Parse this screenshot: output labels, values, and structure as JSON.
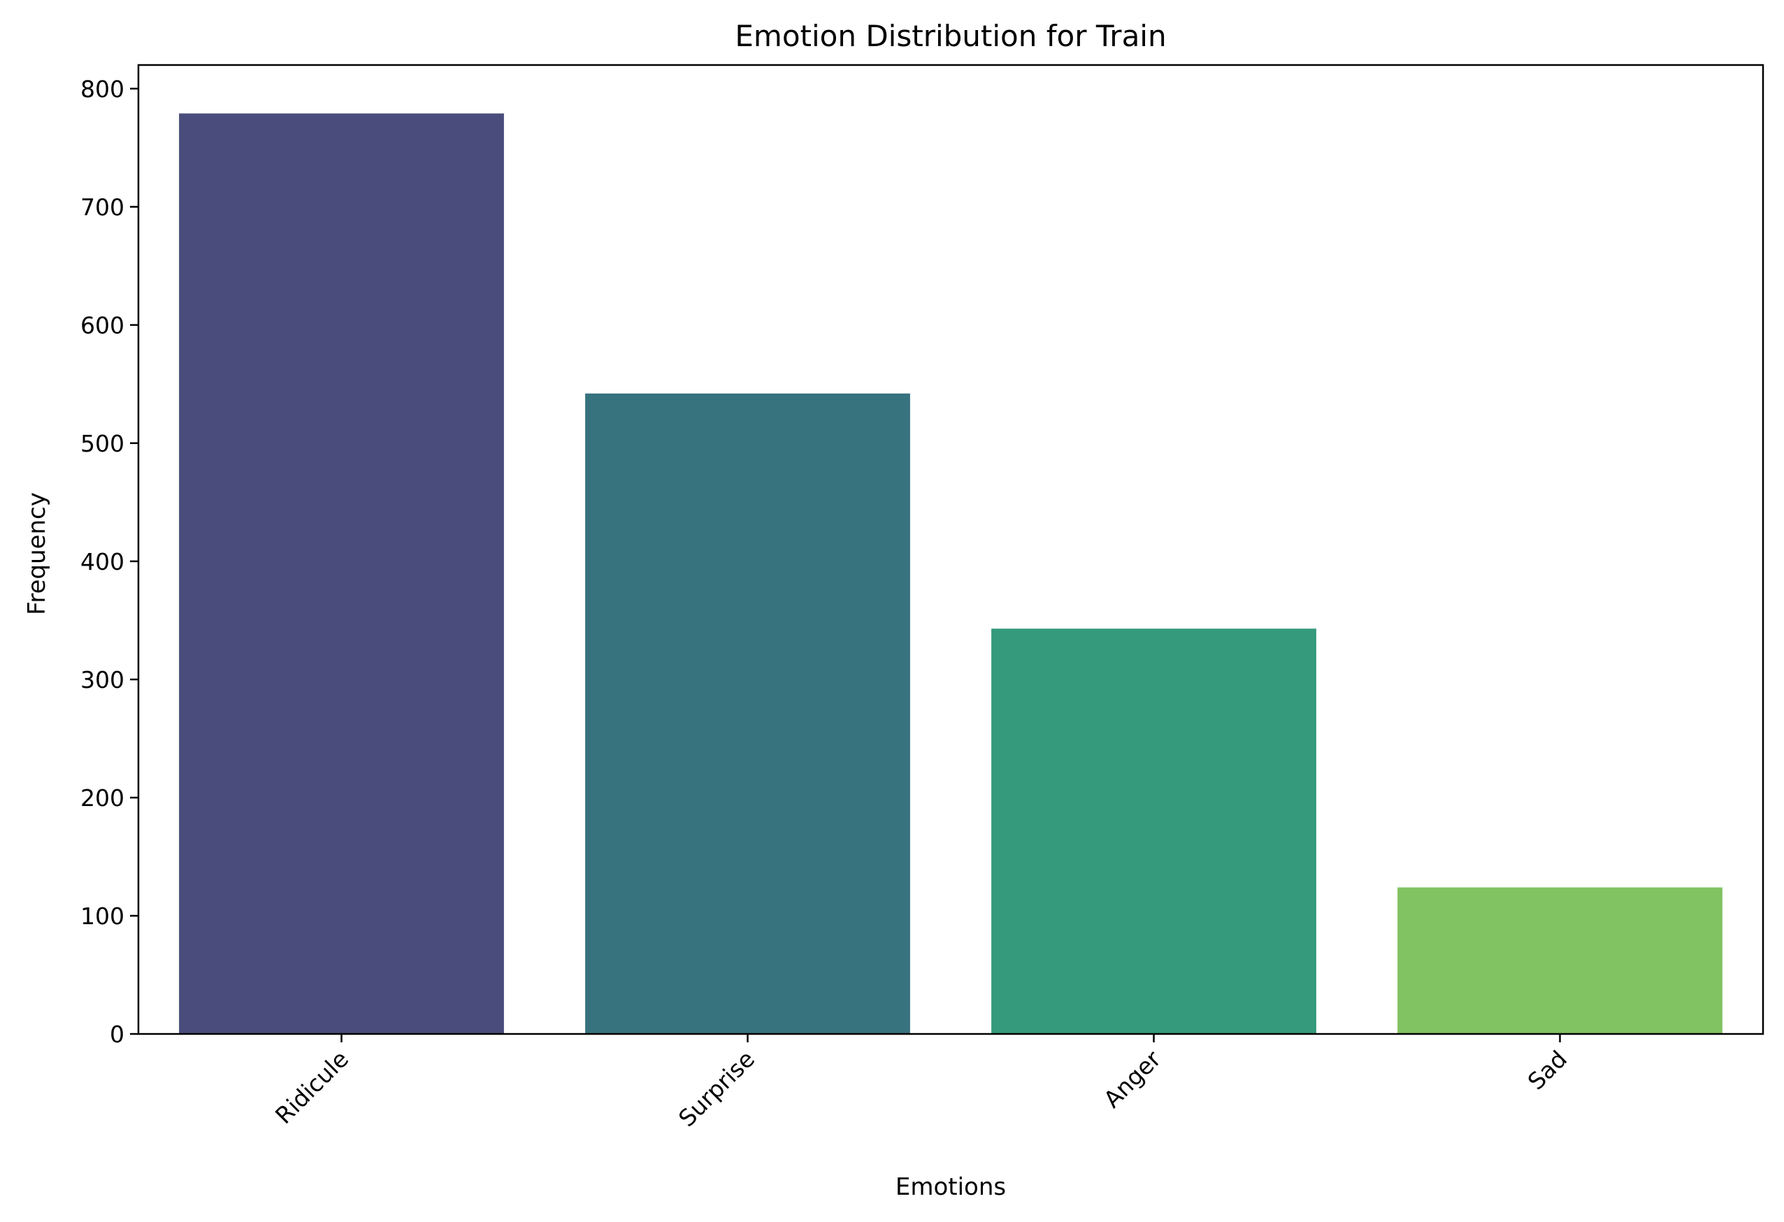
{
  "chart_data": {
    "type": "bar",
    "title": "Emotion Distribution for Train",
    "xlabel": "Emotions",
    "ylabel": "Frequency",
    "categories": [
      "Ridicule",
      "Surprise",
      "Anger",
      "Sad"
    ],
    "values": [
      779,
      542,
      343,
      124
    ],
    "colors": [
      "#4a4d7b",
      "#37727f",
      "#35997c",
      "#81c262"
    ],
    "ylim": [
      0,
      820
    ],
    "yticks": [
      0,
      100,
      200,
      300,
      400,
      500,
      600,
      700,
      800
    ],
    "grid": false,
    "legend": "none"
  }
}
